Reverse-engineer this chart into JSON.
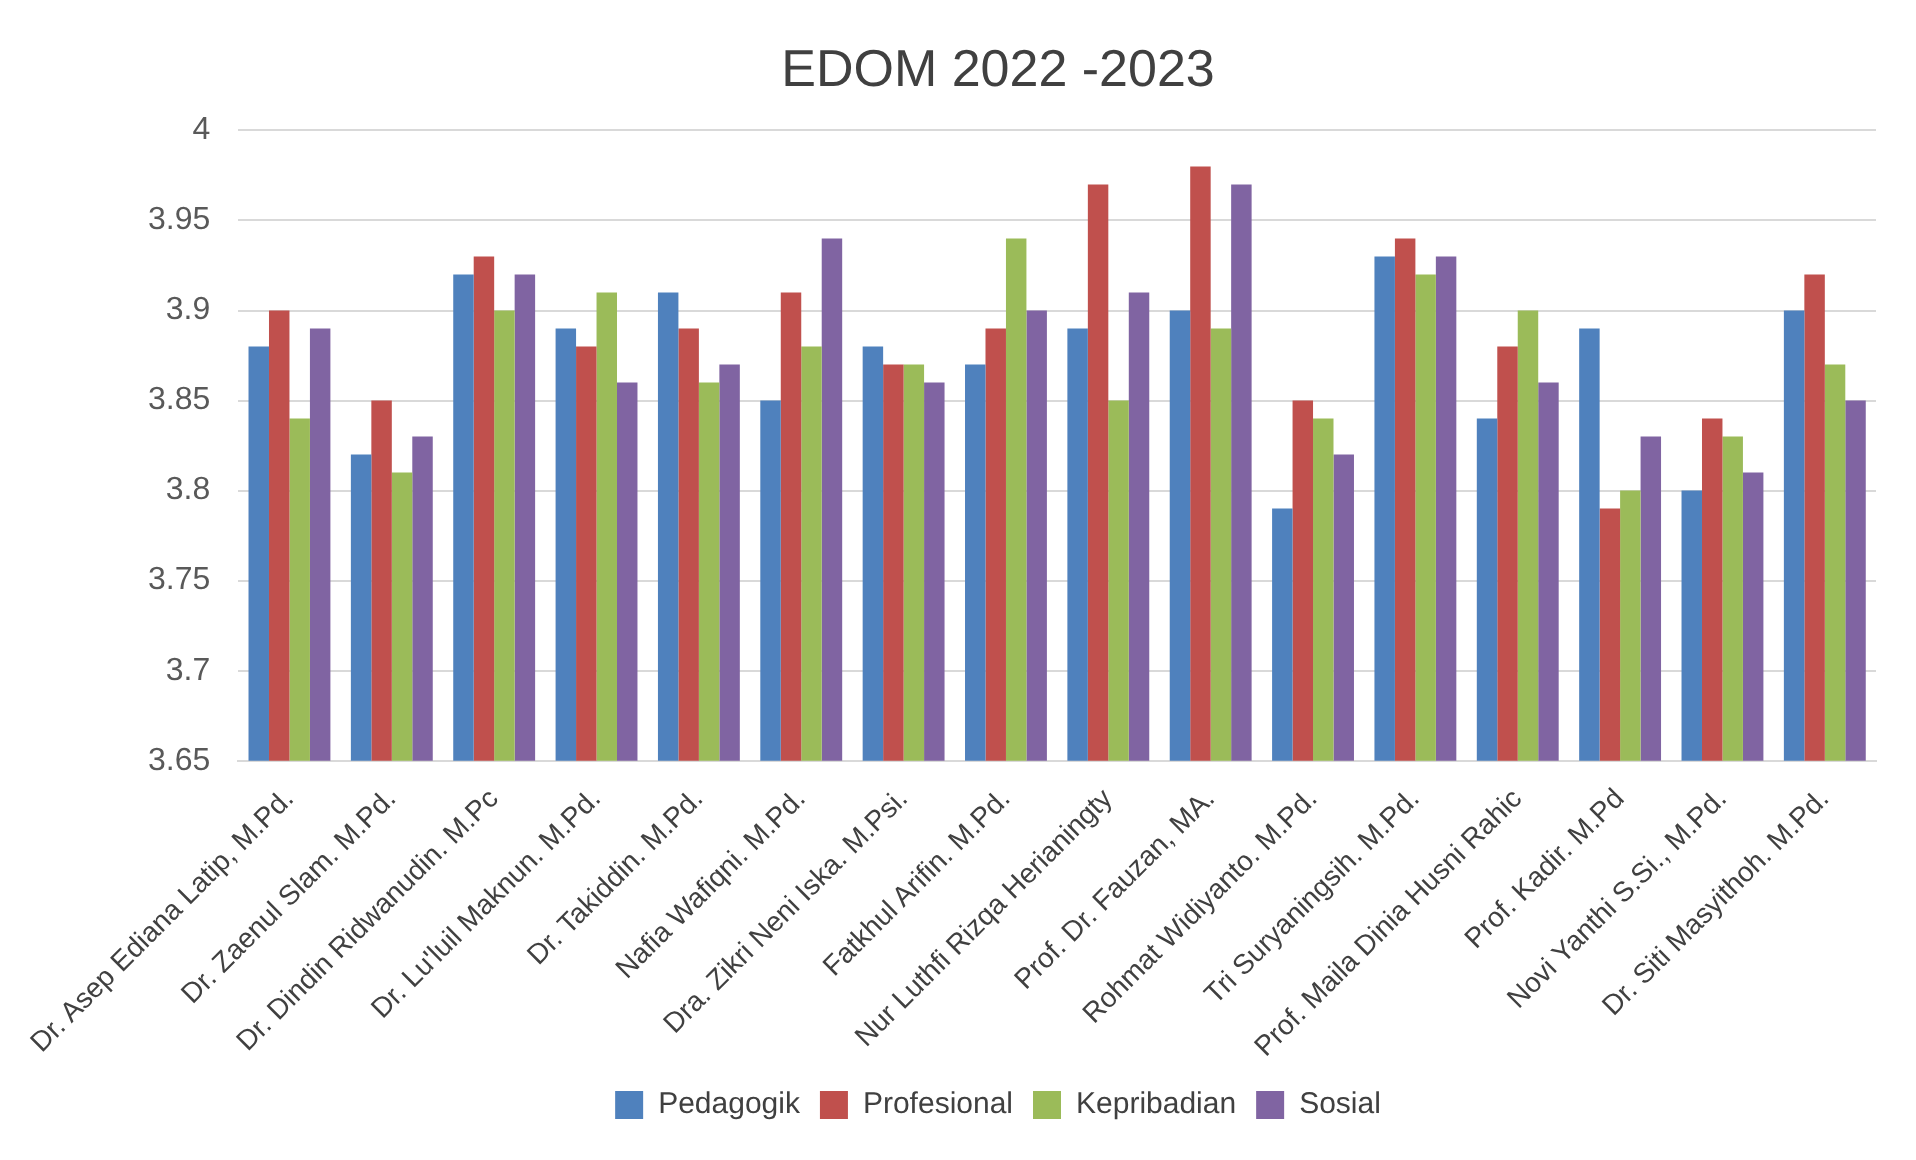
{
  "chart_data": {
    "type": "bar",
    "title": "EDOM 2022 -2023",
    "categories": [
      "Dr. Asep Ediana Latip, M.Pd.",
      "Dr. Zaenul Slam. M.Pd.",
      "Dr. Dindin Ridwanudin. M.Pc",
      "Dr. Lu'luil Maknun. M.Pd.",
      "Dr. Takiddin. M.Pd.",
      "Nafia Wafiqni. M.Pd.",
      "Dra. Zikri Neni Iska. M.Psi.",
      "Fatkhul Arifin. M.Pd.",
      "Nur Luthfi Rizqa Herianingty",
      "Prof. Dr. Fauzan, MA.",
      "Rohmat Widiyanto. M.Pd.",
      "Tri Suryaningsih. M.Pd.",
      "Prof. Maila Dinia Husni Rahic",
      "Prof. Kadir. M.Pd",
      "Novi Yanthi S.Si., M.Pd.",
      "Dr. Siti Masyithoh. M.Pd."
    ],
    "series": [
      {
        "name": "Pedagogik",
        "color": "#4f81bd",
        "values": [
          3.88,
          3.82,
          3.92,
          3.89,
          3.91,
          3.85,
          3.88,
          3.87,
          3.89,
          3.9,
          3.79,
          3.93,
          3.84,
          3.89,
          3.8,
          3.9
        ]
      },
      {
        "name": "Profesional",
        "color": "#c0504d",
        "values": [
          3.9,
          3.85,
          3.93,
          3.88,
          3.89,
          3.91,
          3.87,
          3.89,
          3.97,
          3.98,
          3.85,
          3.94,
          3.88,
          3.79,
          3.84,
          3.92
        ]
      },
      {
        "name": "Kepribadian",
        "color": "#9bbb59",
        "values": [
          3.84,
          3.81,
          3.9,
          3.91,
          3.86,
          3.88,
          3.87,
          3.94,
          3.85,
          3.89,
          3.84,
          3.92,
          3.9,
          3.8,
          3.83,
          3.87
        ]
      },
      {
        "name": "Sosial",
        "color": "#8064a2",
        "values": [
          3.89,
          3.83,
          3.92,
          3.86,
          3.87,
          3.94,
          3.86,
          3.9,
          3.91,
          3.97,
          3.82,
          3.93,
          3.86,
          3.83,
          3.81,
          3.85
        ]
      }
    ],
    "ylim": [
      3.65,
      4
    ],
    "yticks": [
      3.65,
      3.7,
      3.75,
      3.8,
      3.85,
      3.9,
      3.95,
      4
    ],
    "grid": "y",
    "legend": "bottom"
  }
}
